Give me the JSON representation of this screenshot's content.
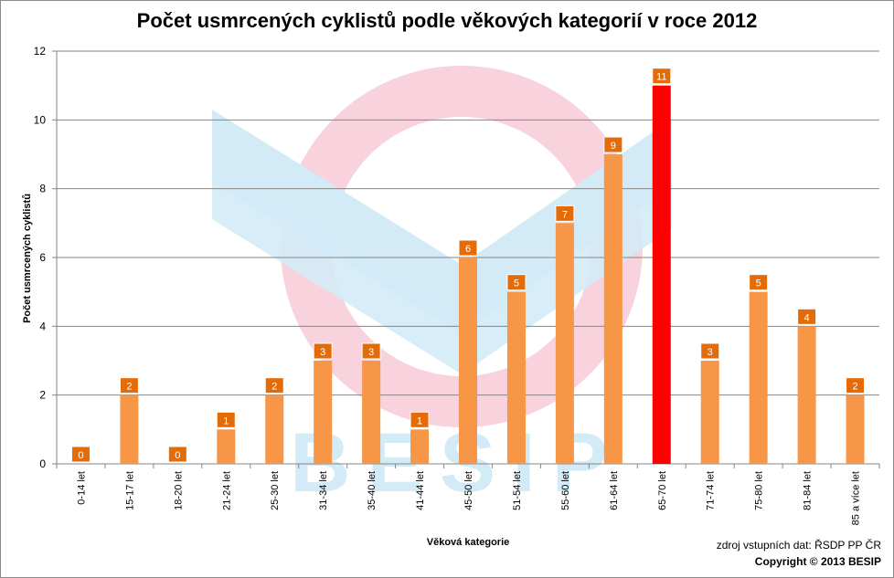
{
  "chart_data": {
    "type": "bar",
    "title": "Počet usmrcených cyklistů podle věkových kategorií v roce 2012",
    "xlabel": "Věková kategorie",
    "ylabel": "Počet usmrcených cyklistů",
    "categories": [
      "0-14 let",
      "15-17 let",
      "18-20 let",
      "21-24 let",
      "25-30 let",
      "31-34 let",
      "35-40 let",
      "41-44 let",
      "45-50 let",
      "51-54 let",
      "55-60 let",
      "61-64 let",
      "65-70 let",
      "71-74 let",
      "75-80 let",
      "81-84 let",
      "85 a více let"
    ],
    "values": [
      0,
      2,
      0,
      1,
      2,
      3,
      3,
      1,
      6,
      5,
      7,
      9,
      11,
      3,
      5,
      4,
      2
    ],
    "highlight_index": 12,
    "ylim": [
      0,
      12
    ],
    "yticks": [
      0,
      2,
      4,
      6,
      8,
      10,
      12
    ],
    "grid": true,
    "legend": "none",
    "colors": {
      "bar": "#f79646",
      "highlight": "#ff0000",
      "label_bg": "#e36c09",
      "gridline": "#868686"
    }
  },
  "footer": {
    "source": "zdroj vstupních dat: ŘSDP PP ČR",
    "copyright": "Copyright © 2013 BESIP"
  },
  "watermark": {
    "text": "BESIP",
    "icon": "besip-logo-icon"
  }
}
